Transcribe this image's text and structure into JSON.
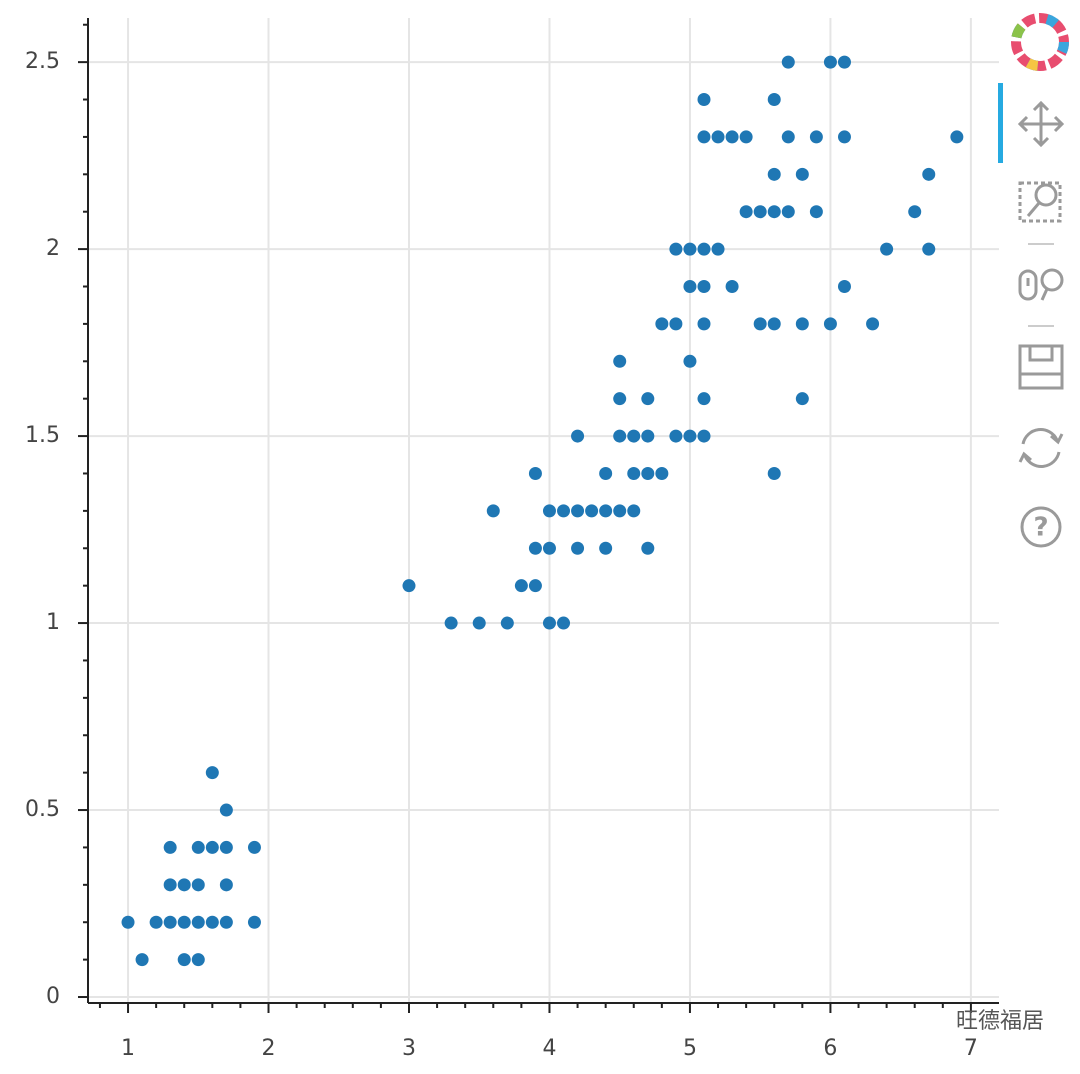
{
  "chart_data": {
    "type": "scatter",
    "color": "#1f77b4",
    "grid": true,
    "xlim": [
      0.715,
      7.2
    ],
    "ylim": [
      -0.016,
      2.618
    ],
    "xticks": [
      1,
      2,
      3,
      4,
      5,
      6,
      7
    ],
    "yticks": [
      0,
      0.5,
      1,
      1.5,
      2,
      2.5
    ],
    "xminorticks": [
      0.8,
      1.2,
      1.4,
      1.6,
      1.8,
      2.2,
      2.4,
      2.6,
      2.8,
      3.2,
      3.4,
      3.6,
      3.8,
      4.2,
      4.4,
      4.6,
      4.8,
      5.2,
      5.4,
      5.6,
      5.8,
      6.2,
      6.4,
      6.6,
      6.8
    ],
    "yminorticks": [
      0.1,
      0.2,
      0.3,
      0.4,
      0.6,
      0.7,
      0.8,
      0.9,
      1.1,
      1.2,
      1.3,
      1.4,
      1.6,
      1.7,
      1.8,
      1.9,
      2.1,
      2.2,
      2.3,
      2.4,
      2.6
    ],
    "x": [
      1.1,
      1.4,
      1.5,
      1.0,
      1.2,
      1.3,
      1.4,
      1.5,
      1.6,
      1.7,
      1.9,
      1.3,
      1.4,
      1.5,
      1.7,
      1.3,
      1.5,
      1.6,
      1.7,
      1.9,
      1.7,
      1.6,
      3.3,
      3.5,
      3.7,
      4.0,
      4.1,
      3.0,
      3.8,
      3.9,
      3.9,
      4.0,
      4.2,
      4.4,
      4.7,
      3.6,
      4.0,
      4.1,
      4.2,
      4.3,
      4.4,
      4.5,
      4.6,
      3.9,
      4.4,
      4.6,
      4.7,
      4.8,
      5.6,
      4.2,
      4.5,
      4.6,
      4.7,
      4.9,
      5.0,
      5.1,
      4.5,
      4.7,
      5.1,
      5.8,
      4.5,
      5.0,
      4.8,
      4.9,
      5.1,
      5.5,
      5.6,
      5.8,
      6.0,
      6.3,
      5.0,
      5.1,
      5.3,
      6.1,
      4.9,
      5.0,
      5.1,
      5.2,
      6.4,
      6.7,
      5.4,
      5.5,
      5.6,
      5.7,
      5.9,
      6.6,
      5.6,
      5.8,
      6.7,
      5.1,
      5.2,
      5.3,
      5.4,
      5.7,
      5.9,
      6.1,
      6.9,
      5.1,
      5.6,
      5.7,
      6.0,
      6.1
    ],
    "values": [
      0.1,
      0.1,
      0.1,
      0.2,
      0.2,
      0.2,
      0.2,
      0.2,
      0.2,
      0.2,
      0.2,
      0.3,
      0.3,
      0.3,
      0.3,
      0.4,
      0.4,
      0.4,
      0.4,
      0.4,
      0.5,
      0.6,
      1.0,
      1.0,
      1.0,
      1.0,
      1.0,
      1.1,
      1.1,
      1.1,
      1.2,
      1.2,
      1.2,
      1.2,
      1.2,
      1.3,
      1.3,
      1.3,
      1.3,
      1.3,
      1.3,
      1.3,
      1.3,
      1.4,
      1.4,
      1.4,
      1.4,
      1.4,
      1.4,
      1.5,
      1.5,
      1.5,
      1.5,
      1.5,
      1.5,
      1.5,
      1.6,
      1.6,
      1.6,
      1.6,
      1.7,
      1.7,
      1.8,
      1.8,
      1.8,
      1.8,
      1.8,
      1.8,
      1.8,
      1.8,
      1.9,
      1.9,
      1.9,
      1.9,
      2.0,
      2.0,
      2.0,
      2.0,
      2.0,
      2.0,
      2.1,
      2.1,
      2.1,
      2.1,
      2.1,
      2.1,
      2.2,
      2.2,
      2.2,
      2.3,
      2.3,
      2.3,
      2.3,
      2.3,
      2.3,
      2.3,
      2.3,
      2.4,
      2.4,
      2.5,
      2.5,
      2.5
    ],
    "watermark": "旺德福居"
  }
}
